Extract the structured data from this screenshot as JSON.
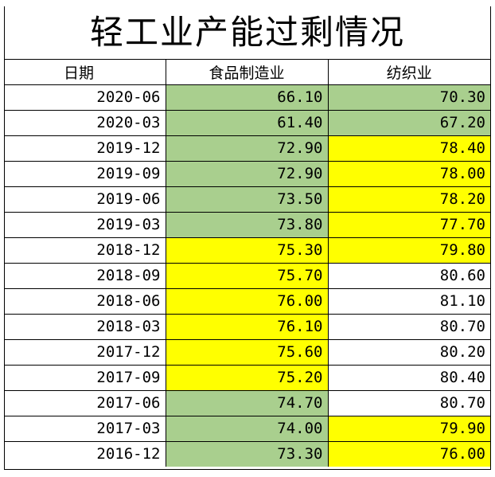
{
  "title": "轻工业产能过剩情况",
  "headers": [
    "日期",
    "食品制造业",
    "纺织业"
  ],
  "colors": {
    "green": "#a9cf8e",
    "yellow": "#ffff00",
    "white": "#ffffff"
  },
  "rows": [
    {
      "date": "2020-06",
      "food": "66.10",
      "food_color": "green",
      "textile": "70.30",
      "textile_color": "green"
    },
    {
      "date": "2020-03",
      "food": "61.40",
      "food_color": "green",
      "textile": "67.20",
      "textile_color": "green"
    },
    {
      "date": "2019-12",
      "food": "72.90",
      "food_color": "green",
      "textile": "78.40",
      "textile_color": "yellow"
    },
    {
      "date": "2019-09",
      "food": "72.90",
      "food_color": "green",
      "textile": "78.00",
      "textile_color": "yellow"
    },
    {
      "date": "2019-06",
      "food": "73.50",
      "food_color": "green",
      "textile": "78.20",
      "textile_color": "yellow"
    },
    {
      "date": "2019-03",
      "food": "73.80",
      "food_color": "green",
      "textile": "77.70",
      "textile_color": "yellow"
    },
    {
      "date": "2018-12",
      "food": "75.30",
      "food_color": "yellow",
      "textile": "79.80",
      "textile_color": "yellow"
    },
    {
      "date": "2018-09",
      "food": "75.70",
      "food_color": "yellow",
      "textile": "80.60",
      "textile_color": "white"
    },
    {
      "date": "2018-06",
      "food": "76.00",
      "food_color": "yellow",
      "textile": "81.10",
      "textile_color": "white"
    },
    {
      "date": "2018-03",
      "food": "76.10",
      "food_color": "yellow",
      "textile": "80.70",
      "textile_color": "white"
    },
    {
      "date": "2017-12",
      "food": "75.60",
      "food_color": "yellow",
      "textile": "80.20",
      "textile_color": "white"
    },
    {
      "date": "2017-09",
      "food": "75.20",
      "food_color": "yellow",
      "textile": "80.40",
      "textile_color": "white"
    },
    {
      "date": "2017-06",
      "food": "74.70",
      "food_color": "green",
      "textile": "80.70",
      "textile_color": "white"
    },
    {
      "date": "2017-03",
      "food": "74.00",
      "food_color": "green",
      "textile": "79.90",
      "textile_color": "yellow"
    },
    {
      "date": "2016-12",
      "food": "73.30",
      "food_color": "green",
      "textile": "76.00",
      "textile_color": "yellow"
    }
  ]
}
